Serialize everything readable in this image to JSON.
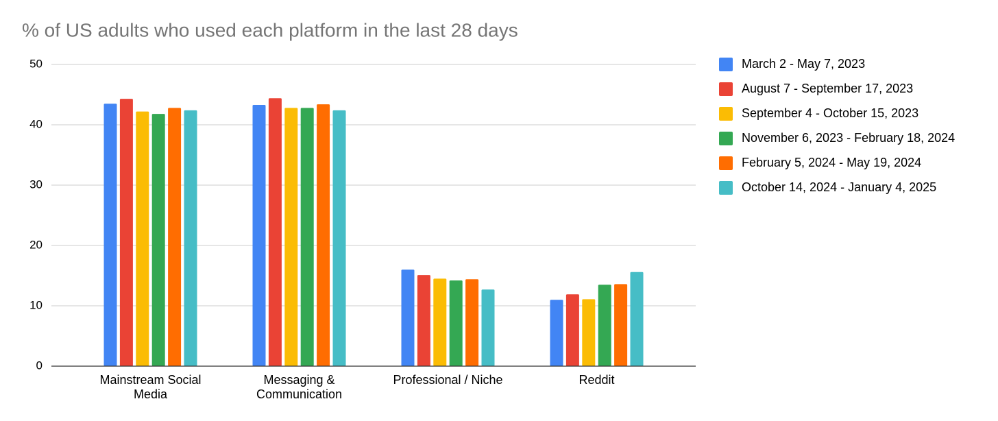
{
  "chart_data": {
    "type": "bar",
    "title": "% of US adults who used each platform in the last 28 days",
    "categories": [
      "Mainstream Social Media",
      "Messaging & Communication",
      "Professional / Niche",
      "Reddit"
    ],
    "series": [
      {
        "name": "March 2 - May 7, 2023",
        "color": "#4285f4",
        "values": [
          43.5,
          43.3,
          16.0,
          11.0
        ]
      },
      {
        "name": "August 7 - September 17, 2023",
        "color": "#ea4335",
        "values": [
          44.3,
          44.4,
          15.1,
          11.9
        ]
      },
      {
        "name": "September 4 - October 15, 2023",
        "color": "#fbbc04",
        "values": [
          42.2,
          42.8,
          14.5,
          11.1
        ]
      },
      {
        "name": "November 6, 2023 - February 18, 2024",
        "color": "#34a853",
        "values": [
          41.8,
          42.8,
          14.2,
          13.5
        ]
      },
      {
        "name": "February 5, 2024 - May 19, 2024",
        "color": "#ff6d01",
        "values": [
          42.8,
          43.4,
          14.4,
          13.6
        ]
      },
      {
        "name": "October 14, 2024 - January 4, 2025",
        "color": "#46bdc6",
        "values": [
          42.4,
          42.4,
          12.7,
          15.6
        ]
      }
    ],
    "ylim": [
      0,
      50
    ],
    "yticks": [
      0,
      10,
      20,
      30,
      40,
      50
    ],
    "grid": true,
    "legend": "right"
  }
}
